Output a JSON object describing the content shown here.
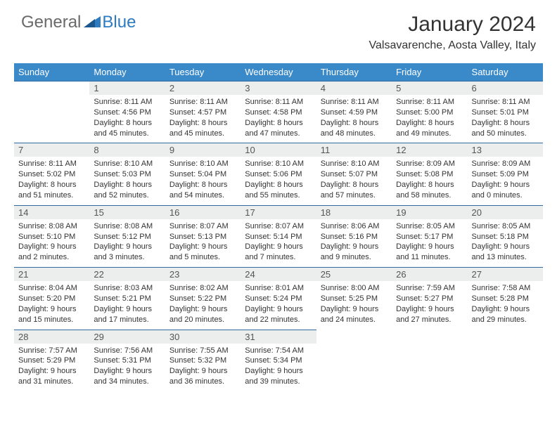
{
  "logo": {
    "general": "General",
    "blue": "Blue"
  },
  "header": {
    "title": "January 2024",
    "location": "Valsavarenche, Aosta Valley, Italy"
  },
  "colors": {
    "header_bg": "#3a89c9",
    "header_text": "#ffffff",
    "daynum_bg": "#eceded",
    "rule": "#2f6aa0",
    "logo_gray": "#6a6a6a",
    "logo_blue": "#2d7bc0"
  },
  "days_of_week": [
    "Sunday",
    "Monday",
    "Tuesday",
    "Wednesday",
    "Thursday",
    "Friday",
    "Saturday"
  ],
  "start_offset": 1,
  "days": [
    {
      "n": 1,
      "sr": "8:11 AM",
      "ss": "4:56 PM",
      "dl": "8 hours and 45 minutes."
    },
    {
      "n": 2,
      "sr": "8:11 AM",
      "ss": "4:57 PM",
      "dl": "8 hours and 45 minutes."
    },
    {
      "n": 3,
      "sr": "8:11 AM",
      "ss": "4:58 PM",
      "dl": "8 hours and 47 minutes."
    },
    {
      "n": 4,
      "sr": "8:11 AM",
      "ss": "4:59 PM",
      "dl": "8 hours and 48 minutes."
    },
    {
      "n": 5,
      "sr": "8:11 AM",
      "ss": "5:00 PM",
      "dl": "8 hours and 49 minutes."
    },
    {
      "n": 6,
      "sr": "8:11 AM",
      "ss": "5:01 PM",
      "dl": "8 hours and 50 minutes."
    },
    {
      "n": 7,
      "sr": "8:11 AM",
      "ss": "5:02 PM",
      "dl": "8 hours and 51 minutes."
    },
    {
      "n": 8,
      "sr": "8:10 AM",
      "ss": "5:03 PM",
      "dl": "8 hours and 52 minutes."
    },
    {
      "n": 9,
      "sr": "8:10 AM",
      "ss": "5:04 PM",
      "dl": "8 hours and 54 minutes."
    },
    {
      "n": 10,
      "sr": "8:10 AM",
      "ss": "5:06 PM",
      "dl": "8 hours and 55 minutes."
    },
    {
      "n": 11,
      "sr": "8:10 AM",
      "ss": "5:07 PM",
      "dl": "8 hours and 57 minutes."
    },
    {
      "n": 12,
      "sr": "8:09 AM",
      "ss": "5:08 PM",
      "dl": "8 hours and 58 minutes."
    },
    {
      "n": 13,
      "sr": "8:09 AM",
      "ss": "5:09 PM",
      "dl": "9 hours and 0 minutes."
    },
    {
      "n": 14,
      "sr": "8:08 AM",
      "ss": "5:10 PM",
      "dl": "9 hours and 2 minutes."
    },
    {
      "n": 15,
      "sr": "8:08 AM",
      "ss": "5:12 PM",
      "dl": "9 hours and 3 minutes."
    },
    {
      "n": 16,
      "sr": "8:07 AM",
      "ss": "5:13 PM",
      "dl": "9 hours and 5 minutes."
    },
    {
      "n": 17,
      "sr": "8:07 AM",
      "ss": "5:14 PM",
      "dl": "9 hours and 7 minutes."
    },
    {
      "n": 18,
      "sr": "8:06 AM",
      "ss": "5:16 PM",
      "dl": "9 hours and 9 minutes."
    },
    {
      "n": 19,
      "sr": "8:05 AM",
      "ss": "5:17 PM",
      "dl": "9 hours and 11 minutes."
    },
    {
      "n": 20,
      "sr": "8:05 AM",
      "ss": "5:18 PM",
      "dl": "9 hours and 13 minutes."
    },
    {
      "n": 21,
      "sr": "8:04 AM",
      "ss": "5:20 PM",
      "dl": "9 hours and 15 minutes."
    },
    {
      "n": 22,
      "sr": "8:03 AM",
      "ss": "5:21 PM",
      "dl": "9 hours and 17 minutes."
    },
    {
      "n": 23,
      "sr": "8:02 AM",
      "ss": "5:22 PM",
      "dl": "9 hours and 20 minutes."
    },
    {
      "n": 24,
      "sr": "8:01 AM",
      "ss": "5:24 PM",
      "dl": "9 hours and 22 minutes."
    },
    {
      "n": 25,
      "sr": "8:00 AM",
      "ss": "5:25 PM",
      "dl": "9 hours and 24 minutes."
    },
    {
      "n": 26,
      "sr": "7:59 AM",
      "ss": "5:27 PM",
      "dl": "9 hours and 27 minutes."
    },
    {
      "n": 27,
      "sr": "7:58 AM",
      "ss": "5:28 PM",
      "dl": "9 hours and 29 minutes."
    },
    {
      "n": 28,
      "sr": "7:57 AM",
      "ss": "5:29 PM",
      "dl": "9 hours and 31 minutes."
    },
    {
      "n": 29,
      "sr": "7:56 AM",
      "ss": "5:31 PM",
      "dl": "9 hours and 34 minutes."
    },
    {
      "n": 30,
      "sr": "7:55 AM",
      "ss": "5:32 PM",
      "dl": "9 hours and 36 minutes."
    },
    {
      "n": 31,
      "sr": "7:54 AM",
      "ss": "5:34 PM",
      "dl": "9 hours and 39 minutes."
    }
  ],
  "labels": {
    "sunrise": "Sunrise:",
    "sunset": "Sunset:",
    "daylight": "Daylight:"
  }
}
